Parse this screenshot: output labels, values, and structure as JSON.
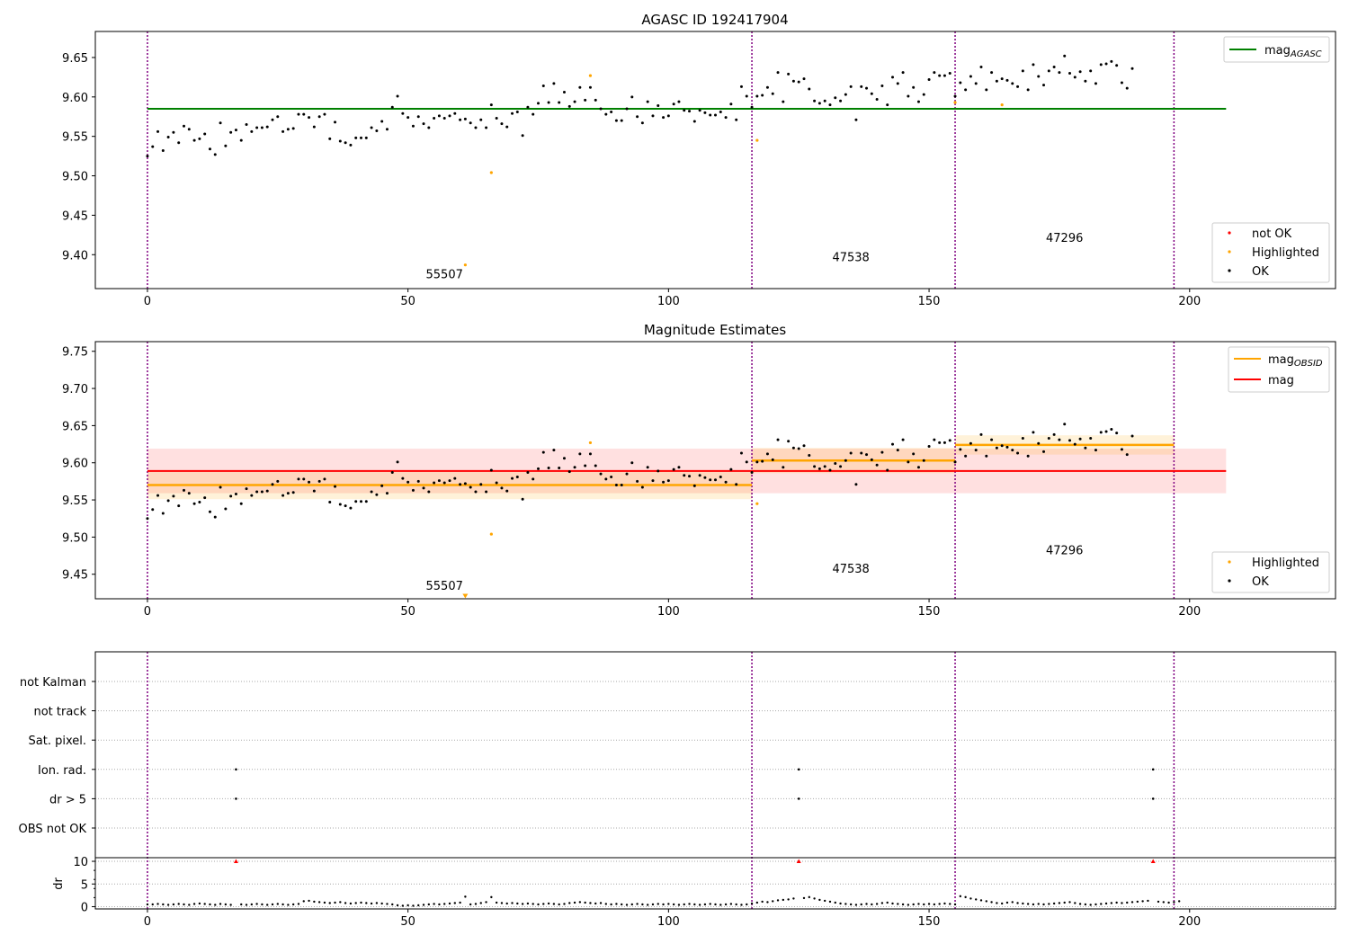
{
  "chart_data": [
    {
      "type": "scatter",
      "title": "AGASC ID 192417904",
      "xlim": [
        -10,
        228
      ],
      "ylim": [
        9.357,
        9.683
      ],
      "xticks": [
        0,
        50,
        100,
        150,
        200
      ],
      "yticks": [
        9.4,
        9.45,
        9.5,
        9.55,
        9.6,
        9.65
      ],
      "ytick_format": 2,
      "grid": false,
      "legend_top": {
        "placement": "top-right",
        "entries": [
          {
            "label": "mag",
            "sub": "AGASC",
            "color": "#008000"
          }
        ]
      },
      "legend_bottom": {
        "placement": "bottom-right",
        "entries": [
          {
            "label": "not OK",
            "color": "#ff0000"
          },
          {
            "label": "Highlighted",
            "color": "#ffa500"
          },
          {
            "label": "OK",
            "color": "#000000"
          }
        ]
      },
      "agasc_mag": {
        "value": 9.585,
        "x": [
          0,
          207
        ],
        "color": "#008000"
      },
      "obsid_lines": [
        0,
        116,
        155,
        197
      ],
      "obsid_labels": [
        {
          "text": "55507",
          "x": 57,
          "y": 9.37
        },
        {
          "text": "47538",
          "x": 135,
          "y": 9.392
        },
        {
          "text": "47296",
          "x": 176,
          "y": 9.416
        }
      ],
      "highlighted": [
        {
          "x": 61,
          "y": 9.387
        },
        {
          "x": 66,
          "y": 9.504
        },
        {
          "x": 85,
          "y": 9.627
        },
        {
          "x": 117,
          "y": 9.545
        },
        {
          "x": 155,
          "y": 9.593
        },
        {
          "x": 164,
          "y": 9.59
        }
      ],
      "ok_y": [
        9.525,
        9.537,
        9.556,
        9.532,
        9.549,
        9.555,
        9.542,
        9.563,
        9.559,
        9.545,
        9.547,
        9.553,
        9.534,
        9.527,
        9.567,
        9.538,
        9.555,
        9.558,
        9.545,
        9.565,
        9.556,
        9.561,
        9.561,
        9.562,
        9.571,
        9.575,
        9.556,
        9.559,
        9.56,
        9.578,
        9.578,
        9.574,
        9.562,
        9.575,
        9.578,
        9.547,
        9.568,
        9.544,
        9.542,
        9.539,
        9.548,
        9.548,
        9.548,
        9.561,
        9.557,
        9.569,
        9.559,
        9.587,
        9.601,
        9.579,
        9.574,
        9.563,
        9.575,
        9.566,
        9.561,
        9.573,
        9.576,
        9.573,
        9.576,
        9.579,
        9.571,
        9.572,
        9.567,
        9.561,
        9.571,
        9.561,
        9.59,
        9.573,
        9.566,
        9.562,
        9.579,
        9.581,
        9.551,
        9.587,
        9.578,
        9.592,
        9.614,
        9.593,
        9.617,
        9.593,
        9.606,
        9.588,
        9.594,
        9.612,
        9.596,
        9.612,
        9.596,
        9.585,
        9.578,
        9.581,
        9.57,
        9.57,
        9.585,
        9.6,
        9.575,
        9.567,
        9.594,
        9.576,
        9.589,
        9.574,
        9.576,
        9.591,
        9.594,
        9.583,
        9.582,
        9.569,
        9.583,
        9.58,
        9.577,
        9.577,
        9.581,
        9.574,
        9.591,
        9.571,
        9.613,
        9.601,
        9.587,
        9.601,
        9.602,
        9.612,
        9.604,
        9.631,
        9.594,
        9.629,
        9.62,
        9.619,
        9.623,
        9.61,
        9.595,
        9.592,
        9.595,
        9.59,
        9.599,
        9.595,
        9.603,
        9.613,
        9.571,
        9.613,
        9.611,
        9.604,
        9.597,
        9.614,
        9.59,
        9.625,
        9.617,
        9.631,
        9.601,
        9.612,
        9.594,
        9.603,
        9.622,
        9.631,
        9.627,
        9.627,
        9.63,
        9.601,
        9.618,
        9.609,
        9.626,
        9.617,
        9.638,
        9.609,
        9.631,
        9.62,
        9.623,
        9.621,
        9.617,
        9.613,
        9.633,
        9.609,
        9.641,
        9.626,
        9.615,
        9.633,
        9.638,
        9.631,
        9.652,
        9.63,
        9.625,
        9.632,
        9.62,
        9.633,
        9.617,
        9.641,
        9.642,
        9.645,
        9.64,
        9.618,
        9.611,
        9.636
      ]
    },
    {
      "type": "scatter",
      "title": "Magnitude Estimates",
      "xlim": [
        -10,
        228
      ],
      "ylim": [
        9.417,
        9.763
      ],
      "xticks": [
        0,
        50,
        100,
        150,
        200
      ],
      "yticks": [
        9.45,
        9.5,
        9.55,
        9.6,
        9.65,
        9.7,
        9.75
      ],
      "ytick_format": 2,
      "grid": false,
      "legend_top": {
        "placement": "top-right",
        "entries": [
          {
            "label": "mag",
            "sub": "OBSID",
            "color": "#ffa500"
          },
          {
            "label": "mag",
            "sub": "",
            "color": "#ff0000"
          }
        ]
      },
      "legend_bottom": {
        "placement": "bottom-right",
        "entries": [
          {
            "label": "Highlighted",
            "color": "#ffa500"
          },
          {
            "label": "OK",
            "color": "#000000"
          }
        ]
      },
      "mag": {
        "value": 9.589,
        "band": [
          9.559,
          9.619
        ],
        "x": [
          0,
          207
        ],
        "color": "#ff0000"
      },
      "mag_obsid": [
        {
          "x": [
            0,
            116
          ],
          "value": 9.57,
          "band": [
            9.551,
            9.589
          ]
        },
        {
          "x": [
            116,
            155
          ],
          "value": 9.603,
          "band": [
            9.586,
            9.62
          ]
        },
        {
          "x": [
            155,
            197
          ],
          "value": 9.624,
          "band": [
            9.611,
            9.637
          ]
        }
      ],
      "obsid_lines": [
        0,
        116,
        155,
        197
      ],
      "obsid_labels": [
        {
          "text": "55507",
          "x": 57,
          "y": 9.429
        },
        {
          "text": "47538",
          "x": 135,
          "y": 9.452
        },
        {
          "text": "47296",
          "x": 176,
          "y": 9.477
        }
      ],
      "highlighted": [
        {
          "x": 66,
          "y": 9.504
        },
        {
          "x": 85,
          "y": 9.627
        },
        {
          "x": 117,
          "y": 9.545
        }
      ],
      "off_scale": [
        {
          "x": 61,
          "y": 9.42
        }
      ],
      "ok_y": [
        9.525,
        9.537,
        9.556,
        9.532,
        9.549,
        9.555,
        9.542,
        9.563,
        9.559,
        9.545,
        9.547,
        9.553,
        9.534,
        9.527,
        9.567,
        9.538,
        9.555,
        9.558,
        9.545,
        9.565,
        9.556,
        9.561,
        9.561,
        9.562,
        9.571,
        9.575,
        9.556,
        9.559,
        9.56,
        9.578,
        9.578,
        9.574,
        9.562,
        9.575,
        9.578,
        9.547,
        9.568,
        9.544,
        9.542,
        9.539,
        9.548,
        9.548,
        9.548,
        9.561,
        9.557,
        9.569,
        9.559,
        9.587,
        9.601,
        9.579,
        9.574,
        9.563,
        9.575,
        9.566,
        9.561,
        9.573,
        9.576,
        9.573,
        9.576,
        9.579,
        9.571,
        9.572,
        9.567,
        9.561,
        9.571,
        9.561,
        9.59,
        9.573,
        9.566,
        9.562,
        9.579,
        9.581,
        9.551,
        9.587,
        9.578,
        9.592,
        9.614,
        9.593,
        9.617,
        9.593,
        9.606,
        9.588,
        9.594,
        9.612,
        9.596,
        9.612,
        9.596,
        9.585,
        9.578,
        9.581,
        9.57,
        9.57,
        9.585,
        9.6,
        9.575,
        9.567,
        9.594,
        9.576,
        9.589,
        9.574,
        9.576,
        9.591,
        9.594,
        9.583,
        9.582,
        9.569,
        9.583,
        9.58,
        9.577,
        9.577,
        9.581,
        9.574,
        9.591,
        9.571,
        9.613,
        9.601,
        9.587,
        9.601,
        9.602,
        9.612,
        9.604,
        9.631,
        9.594,
        9.629,
        9.62,
        9.619,
        9.623,
        9.61,
        9.595,
        9.592,
        9.595,
        9.59,
        9.599,
        9.595,
        9.603,
        9.613,
        9.571,
        9.613,
        9.611,
        9.604,
        9.597,
        9.614,
        9.59,
        9.625,
        9.617,
        9.631,
        9.601,
        9.612,
        9.594,
        9.603,
        9.622,
        9.631,
        9.627,
        9.627,
        9.63,
        9.601,
        9.618,
        9.609,
        9.626,
        9.617,
        9.638,
        9.609,
        9.631,
        9.62,
        9.623,
        9.621,
        9.617,
        9.613,
        9.633,
        9.609,
        9.641,
        9.626,
        9.615,
        9.633,
        9.638,
        9.631,
        9.652,
        9.63,
        9.625,
        9.632,
        9.62,
        9.633,
        9.617,
        9.641,
        9.642,
        9.645,
        9.64,
        9.618,
        9.611,
        9.636
      ]
    },
    {
      "type": "scatter",
      "title": "",
      "xlim": [
        -10,
        228
      ],
      "xticks": [
        0,
        50,
        100,
        150,
        200
      ],
      "flag_rows": [
        "not Kalman",
        "not track",
        "Sat. pixel.",
        "Ion. rad.",
        "dr > 5",
        "OBS not OK"
      ],
      "flags": [
        {
          "row": "Ion. rad.",
          "x": [
            17,
            125,
            193
          ]
        },
        {
          "row": "dr > 5",
          "x": [
            17,
            125,
            193
          ]
        }
      ],
      "obsid_lines": [
        0,
        116,
        155,
        197
      ],
      "dr": {
        "ylabel": "dr",
        "ylim": [
          -0.5,
          10.8
        ],
        "yticks": [
          0,
          5,
          10
        ],
        "ytick_format": 0,
        "gridlines": [
          0,
          5,
          10
        ],
        "over_limit": [
          17,
          125,
          193
        ],
        "y": [
          0.5,
          0.5,
          0.6,
          0.5,
          0.4,
          0.5,
          0.6,
          0.5,
          0.4,
          0.6,
          0.7,
          0.6,
          0.5,
          0.4,
          0.6,
          0.5,
          0.4,
          10,
          0.5,
          0.4,
          0.5,
          0.6,
          0.5,
          0.4,
          0.5,
          0.6,
          0.5,
          0.4,
          0.5,
          0.6,
          1.2,
          1.3,
          1.1,
          1,
          0.9,
          0.8,
          0.9,
          1,
          0.8,
          0.7,
          0.8,
          0.9,
          0.8,
          0.7,
          0.8,
          0.7,
          0.6,
          0.5,
          0.3,
          0.2,
          0.3,
          0.2,
          0.3,
          0.4,
          0.5,
          0.6,
          0.5,
          0.6,
          0.7,
          0.8,
          0.9,
          2.2,
          0.5,
          0.6,
          0.8,
          1,
          2.1,
          0.9,
          0.8,
          0.7,
          0.8,
          0.7,
          0.6,
          0.7,
          0.6,
          0.5,
          0.6,
          0.7,
          0.6,
          0.5,
          0.6,
          0.8,
          0.9,
          1,
          0.9,
          0.8,
          0.7,
          0.8,
          0.6,
          0.5,
          0.6,
          0.5,
          0.4,
          0.5,
          0.6,
          0.5,
          0.4,
          0.5,
          0.6,
          0.5,
          0.6,
          0.5,
          0.4,
          0.5,
          0.6,
          0.5,
          0.4,
          0.5,
          0.6,
          0.5,
          0.4,
          0.5,
          0.6,
          0.5,
          0.4,
          0.5,
          0.7,
          0.9,
          1.1,
          1,
          1.2,
          1.4,
          1.5,
          1.6,
          1.8,
          10,
          1.9,
          2.1,
          1.8,
          1.5,
          1.3,
          1.1,
          0.9,
          0.7,
          0.6,
          0.5,
          0.4,
          0.5,
          0.6,
          0.5,
          0.6,
          0.8,
          0.9,
          0.7,
          0.6,
          0.5,
          0.4,
          0.5,
          0.6,
          0.5,
          0.6,
          0.5,
          0.6,
          0.7,
          0.6,
          0.5,
          2.3,
          2.1,
          1.8,
          1.6,
          1.4,
          1.2,
          1,
          0.8,
          0.7,
          0.9,
          1,
          0.8,
          0.7,
          0.6,
          0.5,
          0.6,
          0.5,
          0.6,
          0.7,
          0.8,
          0.9,
          1,
          0.8,
          0.6,
          0.5,
          0.4,
          0.5,
          0.6,
          0.7,
          0.8,
          0.9,
          0.8,
          0.9,
          1,
          1.1,
          1.2,
          1.3,
          10,
          1.1,
          1,
          0.9,
          1,
          1.2
        ]
      }
    }
  ]
}
